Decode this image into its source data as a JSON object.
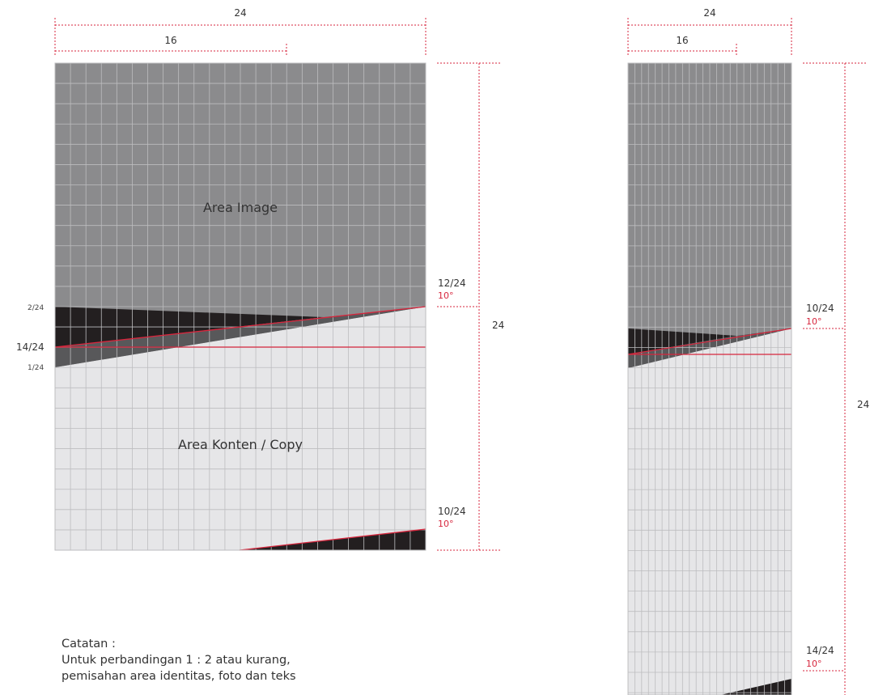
{
  "left_diagram": {
    "top_dim_full": "24",
    "top_dim_partial": "16",
    "right_dim": "24",
    "area_image": "Area Image",
    "area_content": "Area Konten / Copy",
    "left_labels": [
      "2/24",
      "14/24",
      "1/24"
    ],
    "upper_ratio": "12/24",
    "upper_angle": "10°",
    "lower_ratio": "10/24",
    "lower_angle": "10°",
    "grid_columns": 24,
    "grid_rows": 24
  },
  "right_diagram": {
    "top_dim_full": "24",
    "top_dim_partial": "16",
    "right_dim": "24",
    "upper_ratio": "10/24",
    "upper_angle": "10°",
    "lower_ratio": "14/24",
    "lower_angle": "10°",
    "grid_columns": 24
  },
  "note": {
    "title": "Catatan :",
    "lines": [
      "Untuk perbandingan 1 : 2 atau kurang,",
      "pemisahan area identitas, foto dan teks"
    ]
  },
  "colors": {
    "image_area": "#8b8b8d",
    "content_area": "#e6e6e8",
    "dark_band": "#231f20",
    "mid_band": "#58585a",
    "accent_red": "#d7263d",
    "grid_line": "#bdbdbf"
  }
}
